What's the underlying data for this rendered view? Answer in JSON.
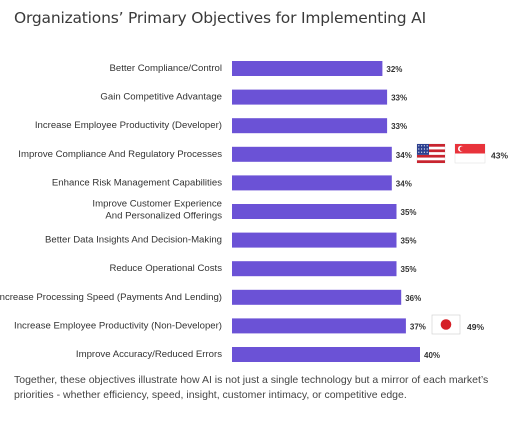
{
  "title": "Organizations’  Primary Objectives for Implementing AI",
  "footnote": "Together, these objectives illustrate how AI is not just a single technology but a mirror of each market’s priorities - whether efficiency, speed, insight, customer intimacy, or competitive edge.",
  "colors": {
    "bar": "#6b52d6",
    "usa_blue": "#2b3f8f",
    "usa_red": "#c8242f",
    "singapore_red": "#e8333b",
    "japan_red": "#d51f26"
  },
  "chart_data": {
    "type": "bar",
    "orientation": "horizontal",
    "xlim": [
      0,
      40
    ],
    "grid": false,
    "categories": [
      "Better Compliance/Control",
      "Gain Competitive Advantage",
      "Increase Employee Productivity (Developer)",
      "Improve Compliance And Regulatory Processes",
      "Enhance Risk Management Capabilities",
      "Improve Customer Experience\nAnd Personalized Offerings",
      "Better Data Insights And Decision-Making",
      "Reduce Operational Costs",
      "Increase Processing Speed (Payments And Lending)",
      "Increase Employee Productivity (Non-Developer)",
      "Improve Accuracy/Reduced Errors"
    ],
    "values": [
      32,
      33,
      33,
      34,
      34,
      35,
      35,
      35,
      36,
      37,
      40
    ],
    "value_labels": [
      "32%",
      "33%",
      "33%",
      "34%",
      "34%",
      "35%",
      "35%",
      "35%",
      "36%",
      "37%",
      "40%"
    ],
    "annotations": [
      {
        "category_index": 3,
        "flags": [
          "us-flag-icon",
          "singapore-flag-icon"
        ],
        "label": "43%"
      },
      {
        "category_index": 9,
        "flags": [
          "japan-flag-icon"
        ],
        "label": "49%"
      }
    ]
  }
}
